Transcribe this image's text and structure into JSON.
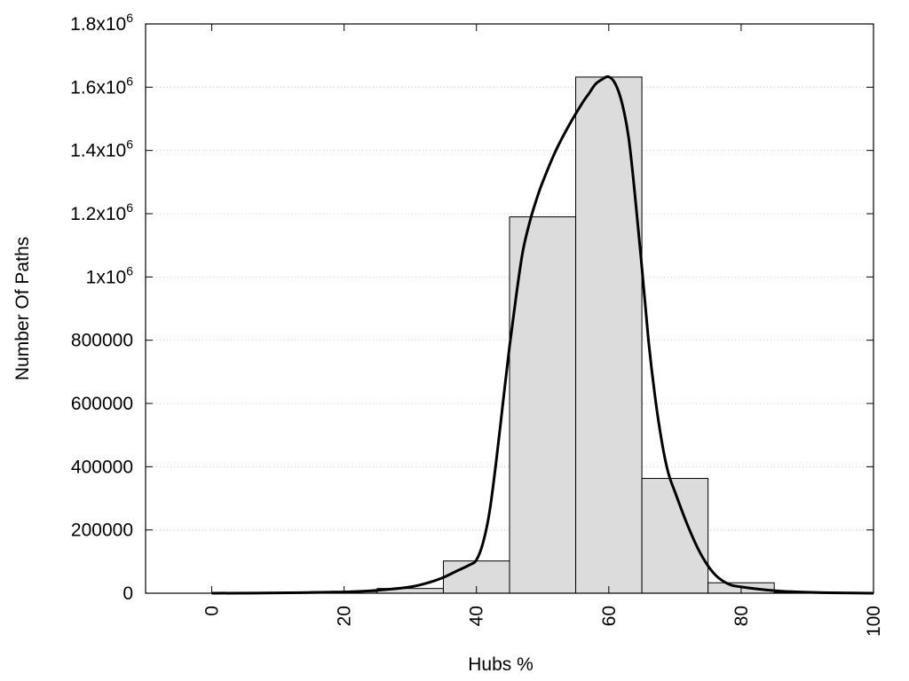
{
  "chart_data": {
    "type": "bar",
    "xlabel": "Hubs %",
    "ylabel": "Number Of Paths",
    "xlim": [
      -10,
      100
    ],
    "ylim": [
      0,
      1800000
    ],
    "grid": true,
    "x_ticks": [
      0,
      20,
      40,
      60,
      80,
      100
    ],
    "y_ticks": [
      {
        "value": 0,
        "label": "0"
      },
      {
        "value": 200000,
        "label": "200000"
      },
      {
        "value": 400000,
        "label": "400000"
      },
      {
        "value": 600000,
        "label": "600000"
      },
      {
        "value": 800000,
        "label": "800000"
      },
      {
        "value": 1000000,
        "mantissa": "1x10",
        "exp": "6"
      },
      {
        "value": 1200000,
        "mantissa": "1.2x10",
        "exp": "6"
      },
      {
        "value": 1400000,
        "mantissa": "1.4x10",
        "exp": "6"
      },
      {
        "value": 1600000,
        "mantissa": "1.6x10",
        "exp": "6"
      },
      {
        "value": 1800000,
        "mantissa": "1.8x10",
        "exp": "6"
      }
    ],
    "bars": [
      {
        "x0": 15,
        "x1": 25,
        "value": 5000
      },
      {
        "x0": 25,
        "x1": 35,
        "value": 15000
      },
      {
        "x0": 35,
        "x1": 45,
        "value": 102000
      },
      {
        "x0": 45,
        "x1": 55,
        "value": 1190000
      },
      {
        "x0": 55,
        "x1": 65,
        "value": 1632000
      },
      {
        "x0": 65,
        "x1": 75,
        "value": 363000
      },
      {
        "x0": 75,
        "x1": 85,
        "value": 33000
      },
      {
        "x0": 85,
        "x1": 95,
        "value": 3000
      }
    ],
    "curve": {
      "x": [
        0,
        10,
        20,
        25,
        30,
        33,
        35,
        37,
        39,
        40,
        41,
        42,
        43,
        44,
        45,
        46,
        47,
        48,
        49,
        50,
        52,
        54,
        56,
        57,
        58,
        59,
        60,
        61,
        62,
        63,
        64,
        65,
        66,
        67,
        68,
        69,
        70,
        72,
        74,
        76,
        78,
        80,
        85,
        90,
        95,
        100
      ],
      "y": [
        0,
        1000,
        4000,
        9000,
        20000,
        35000,
        50000,
        70000,
        90000,
        105000,
        160000,
        260000,
        420000,
        600000,
        780000,
        940000,
        1080000,
        1170000,
        1240000,
        1300000,
        1400000,
        1480000,
        1550000,
        1580000,
        1610000,
        1625000,
        1633000,
        1610000,
        1550000,
        1440000,
        1250000,
        1030000,
        800000,
        620000,
        480000,
        380000,
        320000,
        210000,
        120000,
        60000,
        30000,
        20000,
        8000,
        3000,
        1000,
        0
      ]
    },
    "colors": {
      "bar_fill": "#dcdcdc",
      "bar_stroke": "#000000",
      "curve": "#000000",
      "grid": "#d0d0d0"
    }
  }
}
